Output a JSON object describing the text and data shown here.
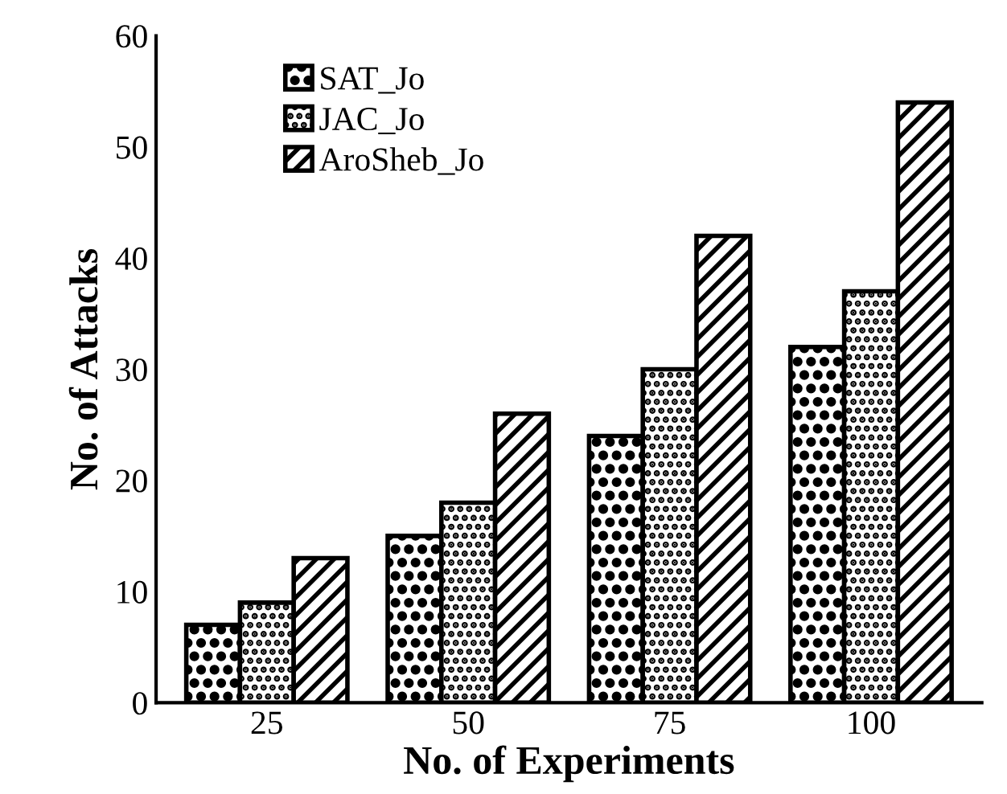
{
  "chart_data": {
    "type": "bar",
    "xlabel": "No. of Experiments",
    "ylabel": "No. of Attacks",
    "categories": [
      "25",
      "50",
      "75",
      "100"
    ],
    "series": [
      {
        "name": "SAT_Jo",
        "color": "#000000",
        "values": [
          7,
          15,
          24,
          32
        ]
      },
      {
        "name": "JAC_Jo",
        "color": "#000000",
        "values": [
          9,
          18,
          30,
          37
        ]
      },
      {
        "name": "AroSheb_Jo",
        "color": "#000000",
        "values": [
          13,
          26,
          42,
          54
        ]
      }
    ],
    "ylim": [
      0,
      60
    ],
    "yticks": [
      0,
      10,
      20,
      30,
      40,
      50,
      60
    ],
    "grid": false,
    "legend": "top left"
  }
}
